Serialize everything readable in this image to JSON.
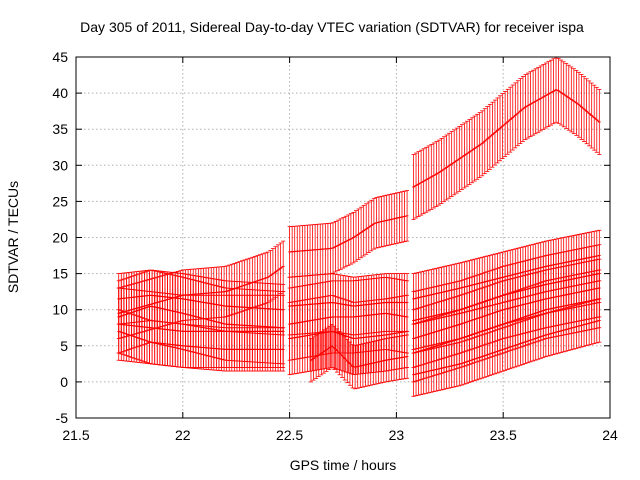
{
  "chart_data": {
    "type": "line",
    "title": "Day 305 of 2011, Sidereal Day-to-day VTEC variation (SDTVAR) for receiver ispa",
    "xlabel": "GPS time / hours",
    "ylabel": "SDTVAR / TECUs",
    "xlim": [
      21.5,
      24
    ],
    "ylim": [
      -5,
      45
    ],
    "x_ticks": [
      "21.5",
      "22",
      "22.5",
      "23",
      "23.5",
      "24"
    ],
    "y_ticks": [
      "-5",
      "0",
      "5",
      "10",
      "15",
      "20",
      "25",
      "30",
      "35",
      "40",
      "45"
    ],
    "grid": true,
    "error_bars": true,
    "color": "#ff0000",
    "series": [
      {
        "error": 3.5,
        "x": [
          21.7,
          22.0,
          22.2,
          22.4,
          22.47
        ],
        "y": [
          9.5,
          12.0,
          12.5,
          14.5,
          16.0
        ]
      },
      {
        "error": 3.5,
        "x": [
          22.5,
          22.7,
          22.8,
          22.9,
          23.05
        ],
        "y": [
          18.0,
          18.5,
          20.0,
          22.0,
          23.0
        ]
      },
      {
        "error": 4.5,
        "x": [
          23.08,
          23.2,
          23.4,
          23.6,
          23.75,
          23.85,
          23.95
        ],
        "y": [
          27.0,
          29.0,
          33.0,
          38.0,
          40.5,
          38.5,
          36.0
        ]
      },
      {
        "error": 3.5,
        "x": [
          21.7,
          21.85,
          22.0,
          22.2,
          22.47
        ],
        "y": [
          11.5,
          12.0,
          11.5,
          10.5,
          10.0
        ]
      },
      {
        "error": 5.0,
        "x": [
          21.7,
          21.85,
          22.0,
          22.2,
          22.47
        ],
        "y": [
          9.0,
          10.5,
          9.5,
          8.0,
          7.5
        ]
      },
      {
        "error": 5.0,
        "x": [
          21.7,
          21.85,
          22.0,
          22.2,
          22.47
        ],
        "y": [
          8.0,
          7.5,
          7.0,
          7.0,
          7.0
        ]
      },
      {
        "error": 3.0,
        "x": [
          21.7,
          21.85,
          22.0,
          22.2,
          22.47
        ],
        "y": [
          7.0,
          5.5,
          5.0,
          4.5,
          4.5
        ]
      },
      {
        "error": 4.0,
        "x": [
          22.5,
          22.7,
          22.8,
          22.95,
          23.05
        ],
        "y": [
          10.5,
          11.0,
          10.5,
          11.0,
          11.0
        ]
      },
      {
        "error": 5.0,
        "x": [
          22.5,
          22.7,
          22.8,
          22.95,
          23.05
        ],
        "y": [
          8.0,
          9.0,
          9.0,
          9.5,
          9.0
        ]
      },
      {
        "error": 5.0,
        "x": [
          22.5,
          22.7,
          22.8,
          22.95,
          23.05
        ],
        "y": [
          6.0,
          7.0,
          6.0,
          6.5,
          7.0
        ]
      },
      {
        "error": 3.0,
        "x": [
          22.6,
          22.7,
          22.8,
          22.95,
          23.05
        ],
        "y": [
          3.0,
          5.0,
          2.0,
          3.0,
          3.5
        ]
      },
      {
        "error": 3.5,
        "x": [
          23.08,
          23.3,
          23.5,
          23.7,
          23.95
        ],
        "y": [
          11.5,
          13.0,
          14.5,
          16.0,
          17.5
        ]
      },
      {
        "error": 4.0,
        "x": [
          23.08,
          23.3,
          23.5,
          23.7,
          23.95
        ],
        "y": [
          8.5,
          10.0,
          12.0,
          13.5,
          15.0
        ]
      },
      {
        "error": 4.0,
        "x": [
          23.08,
          23.3,
          23.5,
          23.7,
          23.95
        ],
        "y": [
          6.0,
          8.0,
          10.0,
          11.5,
          13.0
        ]
      },
      {
        "error": 4.0,
        "x": [
          23.08,
          23.3,
          23.5,
          23.7,
          23.95
        ],
        "y": [
          4.0,
          6.0,
          8.0,
          10.0,
          11.5
        ]
      },
      {
        "error": 3.0,
        "x": [
          23.08,
          23.3,
          23.5,
          23.7,
          23.95
        ],
        "y": [
          1.0,
          2.5,
          4.5,
          6.5,
          8.5
        ]
      }
    ]
  }
}
